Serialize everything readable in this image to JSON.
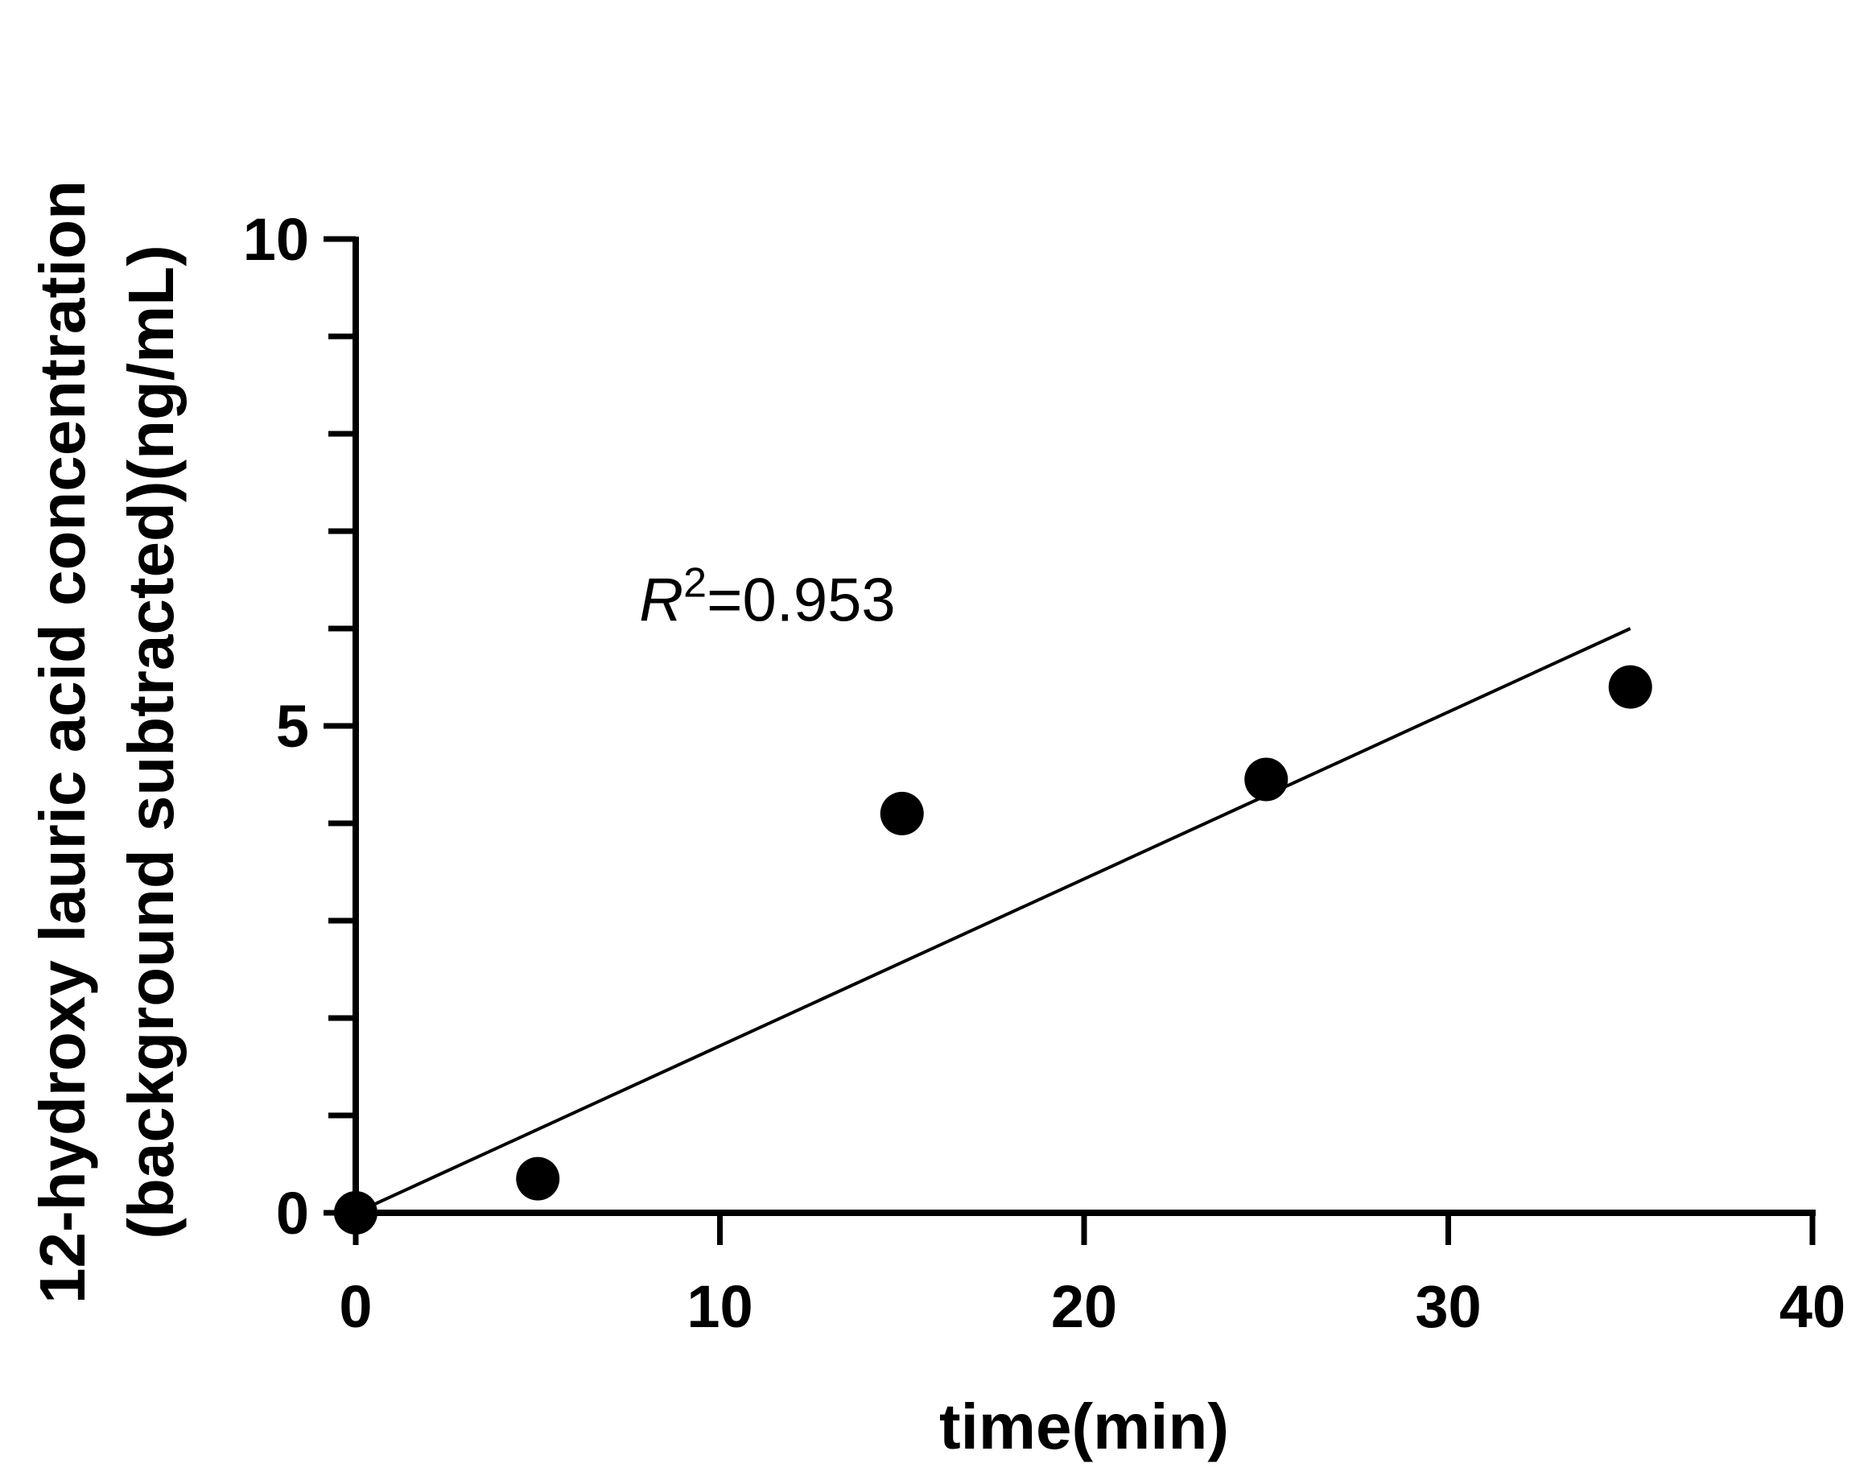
{
  "chart_data": {
    "type": "scatter",
    "title": "",
    "xlabel": "time(min)",
    "ylabel_lines": [
      "12-hydroxy lauric acid concentration",
      "(background subtracted)(ng/mL)"
    ],
    "xlim": [
      0,
      40
    ],
    "ylim": [
      0,
      10
    ],
    "x_ticks": [
      0,
      10,
      20,
      30,
      40
    ],
    "y_ticks": [
      0,
      1,
      2,
      3,
      4,
      5,
      6,
      7,
      8,
      9,
      10
    ],
    "y_tick_labels": [
      {
        "value": 0,
        "label": "0"
      },
      {
        "value": 5,
        "label": "5"
      },
      {
        "value": 10,
        "label": "10"
      }
    ],
    "x_tick_labels": [
      {
        "value": 0,
        "label": "0"
      },
      {
        "value": 10,
        "label": "10"
      },
      {
        "value": 20,
        "label": "20"
      },
      {
        "value": 30,
        "label": "30"
      },
      {
        "value": 40,
        "label": "40"
      }
    ],
    "series": [
      {
        "points": [
          {
            "x": 0,
            "y": 0.0
          },
          {
            "x": 5,
            "y": 0.35
          },
          {
            "x": 15,
            "y": 4.1
          },
          {
            "x": 25,
            "y": 4.45
          },
          {
            "x": 35,
            "y": 5.4
          }
        ],
        "color": "#000000"
      }
    ],
    "fit_line": {
      "x1": 0,
      "y1": 0.0,
      "x2": 35,
      "y2": 6.0,
      "color": "#000000"
    },
    "annotation": {
      "r_symbol": "R",
      "superscript": "2",
      "value_text": "=0.953",
      "x": 9,
      "y": 6.3
    },
    "grid": false,
    "legend": "none"
  }
}
